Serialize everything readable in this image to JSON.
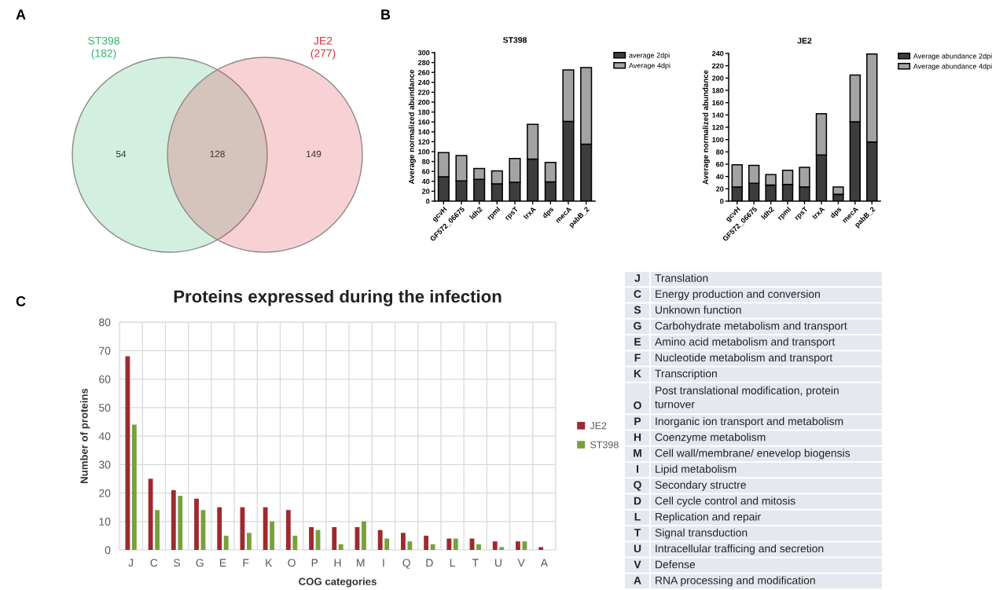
{
  "chart_data": [
    {
      "type": "other",
      "categories": [
        "ST398",
        "JE2"
      ],
      "value_labels": [
        "(182)",
        "(277)"
      ],
      "colors": [
        "#35b56e",
        "#d92e3a"
      ],
      "annotations": [
        "A",
        "54",
        "128",
        "149"
      ]
    },
    {
      "type": "bar",
      "title": "ST398",
      "ylabel": "Average normalized abundance",
      "categories": [
        "gcvH",
        "GF572_06675",
        "ldh2",
        "rpmI",
        "rpsT",
        "trxA",
        "dps",
        "mecA",
        "pabB_2"
      ],
      "stacked": true,
      "series": [
        {
          "name": "average 2dpi",
          "color": "#3d3d3d",
          "values": [
            49,
            41,
            44,
            35,
            38,
            85,
            39,
            161,
            115
          ]
        },
        {
          "name": "Average 4dpi",
          "color": "#a3a3a3",
          "values": [
            49,
            51,
            22,
            26,
            48,
            70,
            39,
            104,
            155
          ]
        }
      ],
      "ylim": [
        0,
        300
      ],
      "yticks": [
        0,
        20,
        40,
        60,
        80,
        100,
        120,
        140,
        160,
        180,
        200,
        220,
        240,
        260,
        280,
        300
      ],
      "legend": "top right",
      "annotations": [
        "B"
      ]
    },
    {
      "type": "bar",
      "title": "JE2",
      "ylabel": "Average normalized abundance",
      "categories": [
        "gcvH",
        "GF572_06675",
        "ldh2",
        "rpmI",
        "rpsT",
        "trxA",
        "dps",
        "mecA",
        "pabB_2"
      ],
      "stacked": true,
      "series": [
        {
          "name": "Average abundance 2dpi",
          "color": "#3d3d3d",
          "values": [
            23,
            29,
            26,
            27,
            23,
            75,
            11,
            129,
            96
          ]
        },
        {
          "name": "Average abundance 4dpi",
          "color": "#a3a3a3",
          "values": [
            36,
            29,
            17,
            23,
            32,
            67,
            12,
            76,
            143
          ]
        }
      ],
      "ylim": [
        0,
        240
      ],
      "yticks": [
        0,
        20,
        40,
        60,
        80,
        100,
        120,
        140,
        160,
        180,
        200,
        220,
        240
      ],
      "legend": "top right"
    },
    {
      "type": "bar",
      "title": "Proteins expressed during the infection",
      "xlabel": "COG categories",
      "ylabel": "Number of proteins",
      "categories": [
        "J",
        "C",
        "S",
        "G",
        "E",
        "F",
        "K",
        "O",
        "P",
        "H",
        "M",
        "I",
        "Q",
        "D",
        "L",
        "T",
        "U",
        "V",
        "A"
      ],
      "series": [
        {
          "name": "JE2",
          "color": "#9e2a2f",
          "values": [
            68,
            25,
            21,
            18,
            15,
            15,
            15,
            14,
            8,
            8,
            8,
            7,
            6,
            5,
            4,
            4,
            3,
            3,
            1
          ]
        },
        {
          "name": "ST398",
          "color": "#77a13b",
          "values": [
            44,
            14,
            19,
            14,
            5,
            6,
            10,
            5,
            7,
            2,
            10,
            4,
            3,
            2,
            4,
            2,
            1,
            3,
            null
          ]
        }
      ],
      "ylim": [
        0,
        80
      ],
      "yticks": [
        0,
        10,
        20,
        30,
        40,
        50,
        60,
        70,
        80
      ],
      "grid": true,
      "legend": "right",
      "annotations": [
        "C"
      ]
    },
    {
      "type": "other",
      "y_categories": [
        "J",
        "C",
        "S",
        "G",
        "E",
        "F",
        "K",
        "O",
        "P",
        "H",
        "M",
        "I",
        "Q",
        "D",
        "L",
        "T",
        "U",
        "V",
        "A"
      ],
      "y2_categories": [
        "Translation",
        "Energy production and conversion",
        "Unknown function",
        "Carbohydrate metabolism and transport",
        "Amino acid metabolism and transport",
        "Nucleotide metabolism and transport",
        "Transcription",
        "Post translational modification, protein turnover",
        "Inorganic ion transport and metabolism",
        "Coenzyme metabolism",
        "Cell wall/membrane/ enevelop biogensis",
        "Lipid metabolism",
        "Secondary structre",
        "Cell cycle control and mitosis",
        "Replication and repair",
        "Signal transduction",
        "Intracellular trafficing and secretion",
        "Defense",
        "RNA processing and modification"
      ]
    }
  ]
}
